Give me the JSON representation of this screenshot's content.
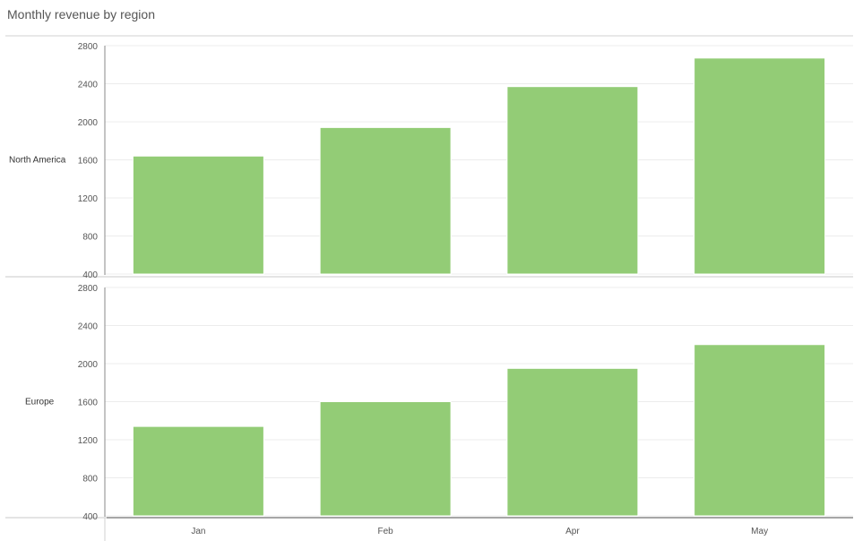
{
  "title": "Monthly revenue by region",
  "chart_data": {
    "type": "bar",
    "layout": "small-multiples-vertical",
    "title": "Monthly revenue by region",
    "categories": [
      "Jan",
      "Feb",
      "Apr",
      "May"
    ],
    "ylim": [
      400,
      2800
    ],
    "yticks": [
      400,
      800,
      1200,
      1600,
      2000,
      2400,
      2800
    ],
    "grid": true,
    "bar_color": "#93cc76",
    "series": [
      {
        "name": "North America",
        "values": [
          1640,
          1940,
          2370,
          2670
        ]
      },
      {
        "name": "Europe",
        "values": [
          1340,
          1600,
          1950,
          2200
        ]
      }
    ]
  }
}
